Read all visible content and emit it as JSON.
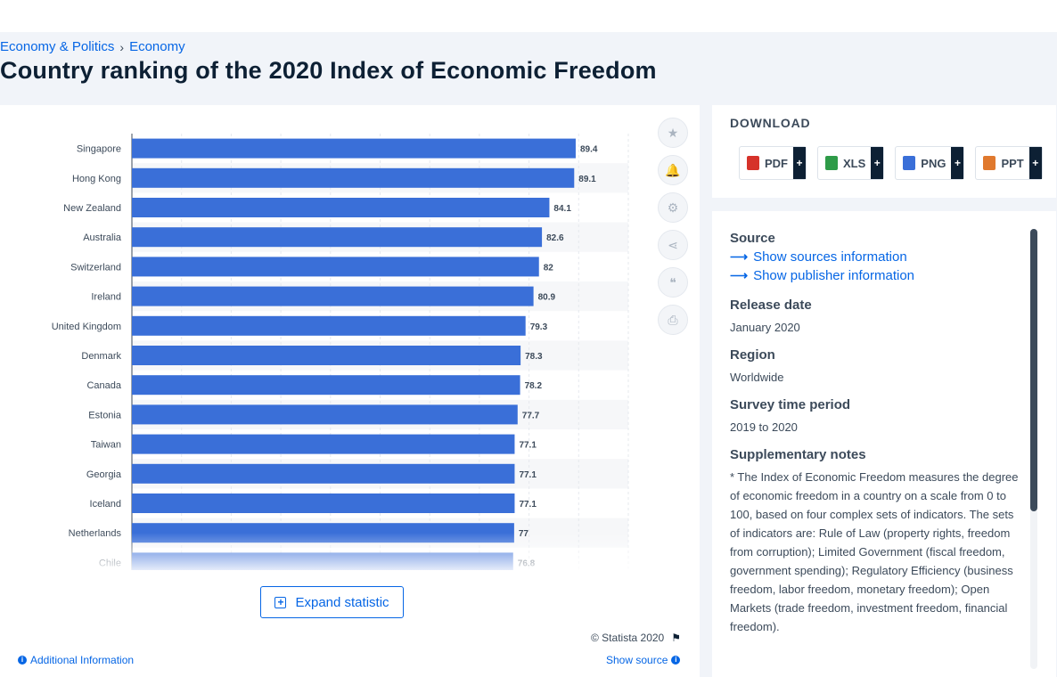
{
  "breadcrumb": {
    "items": [
      "Economy & Politics",
      "Economy"
    ],
    "separator": "›"
  },
  "page_title": "Country ranking of the 2020 Index of Economic Freedom",
  "chart_data": {
    "type": "bar",
    "orientation": "horizontal",
    "categories": [
      "Singapore",
      "Hong Kong",
      "New Zealand",
      "Australia",
      "Switzerland",
      "Ireland",
      "United Kingdom",
      "Denmark",
      "Canada",
      "Estonia",
      "Taiwan",
      "Georgia",
      "Iceland",
      "Netherlands",
      "Chile"
    ],
    "values": [
      89.4,
      89.1,
      84.1,
      82.6,
      82,
      80.9,
      79.3,
      78.3,
      78.2,
      77.7,
      77.1,
      77.1,
      77.1,
      77,
      76.8
    ],
    "value_labels": [
      "89.4",
      "89.1",
      "84.1",
      "82.6",
      "82",
      "80.9",
      "79.3",
      "78.3",
      "78.2",
      "77.7",
      "77.1",
      "77.1",
      "77.1",
      "77",
      "76.8"
    ],
    "xlim": [
      0,
      100
    ],
    "grid": true,
    "bar_color": "#3a6fd8"
  },
  "tools": [
    {
      "name": "favorite-star-icon",
      "glyph": "★"
    },
    {
      "name": "notification-bell-icon",
      "glyph": "🔔"
    },
    {
      "name": "settings-gear-icon",
      "glyph": "⚙"
    },
    {
      "name": "share-icon",
      "glyph": "⋖"
    },
    {
      "name": "cite-quote-icon",
      "glyph": "❝"
    },
    {
      "name": "print-icon",
      "glyph": "⎙"
    }
  ],
  "expand_label": "Expand statistic",
  "copyright": "© Statista 2020",
  "additional_info": "Additional Information",
  "show_source": "Show source",
  "download": {
    "title": "DOWNLOAD",
    "formats": [
      {
        "label": "PDF",
        "color": "#d6322a"
      },
      {
        "label": "XLS",
        "color": "#2e9b48"
      },
      {
        "label": "PNG",
        "color": "#3a6fd8"
      },
      {
        "label": "PPT",
        "color": "#e0792e"
      }
    ],
    "plus": "+"
  },
  "meta": {
    "source_h": "Source",
    "show_sources": "Show sources information",
    "show_publisher": "Show publisher information",
    "release_h": "Release date",
    "release_v": "January 2020",
    "region_h": "Region",
    "region_v": "Worldwide",
    "survey_h": "Survey time period",
    "survey_v": "2019 to 2020",
    "notes_h": "Supplementary notes",
    "notes_v": "* The Index of Economic Freedom measures the degree of economic freedom in a country on a scale from 0 to 100, based on four complex sets of indicators. The sets of indicators are: Rule of Law (property rights, freedom from corruption); Limited Government (fiscal freedom, government spending); Regulatory Efficiency (business freedom, labor freedom, monetary freedom); Open Markets (trade freedom, investment freedom, financial freedom)."
  },
  "colors": {
    "accent": "#0666e5",
    "text": "#0d2034",
    "muted": "#3c4a5a"
  }
}
